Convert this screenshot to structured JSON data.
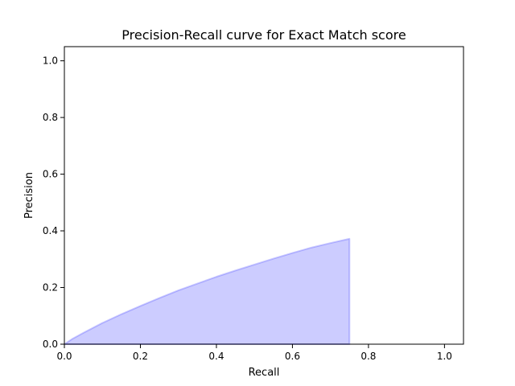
{
  "chart_data": {
    "type": "area",
    "title": "Precision-Recall curve for Exact Match score",
    "xlabel": "Recall",
    "ylabel": "Precision",
    "xlim": [
      0,
      1.05
    ],
    "ylim": [
      0,
      1.05
    ],
    "xticks": [
      0.0,
      0.2,
      0.4,
      0.6,
      0.8,
      1.0
    ],
    "yticks": [
      0.0,
      0.2,
      0.4,
      0.6,
      0.8,
      1.0
    ],
    "xtick_labels": [
      "0.0",
      "0.2",
      "0.4",
      "0.6",
      "0.8",
      "1.0"
    ],
    "ytick_labels": [
      "0.0",
      "0.2",
      "0.4",
      "0.6",
      "0.8",
      "1.0"
    ],
    "grid": false,
    "series": [
      {
        "x": [
          0.0,
          0.02,
          0.05,
          0.1,
          0.15,
          0.2,
          0.25,
          0.3,
          0.35,
          0.4,
          0.45,
          0.5,
          0.55,
          0.6,
          0.65,
          0.7,
          0.75,
          0.75
        ],
        "y": [
          0.0,
          0.018,
          0.04,
          0.075,
          0.106,
          0.135,
          0.163,
          0.19,
          0.214,
          0.238,
          0.26,
          0.281,
          0.302,
          0.322,
          0.341,
          0.357,
          0.372,
          0.0
        ],
        "color": "#0000ff",
        "fill_alpha": 0.2
      }
    ]
  }
}
